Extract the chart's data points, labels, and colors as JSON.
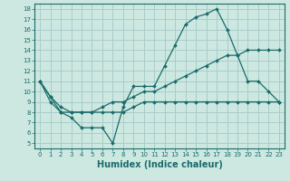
{
  "xlabel": "Humidex (Indice chaleur)",
  "bg_color": "#cce8e0",
  "grid_color": "#aacccc",
  "line_color": "#1a6b6b",
  "spine_color": "#1a6b6b",
  "xlim": [
    -0.5,
    23.5
  ],
  "ylim": [
    4.5,
    18.5
  ],
  "xticks": [
    0,
    1,
    2,
    3,
    4,
    5,
    6,
    7,
    8,
    9,
    10,
    11,
    12,
    13,
    14,
    15,
    16,
    17,
    18,
    19,
    20,
    21,
    22,
    23
  ],
  "yticks": [
    5,
    6,
    7,
    8,
    9,
    10,
    11,
    12,
    13,
    14,
    15,
    16,
    17,
    18
  ],
  "line1_x": [
    0,
    1,
    2,
    3,
    4,
    5,
    6,
    7,
    8,
    9,
    10,
    11,
    12,
    13,
    14,
    15,
    16,
    17,
    18,
    19,
    20,
    21,
    22,
    23
  ],
  "line1_y": [
    11,
    9,
    8,
    7.5,
    6.5,
    6.5,
    6.5,
    5,
    8.5,
    10.5,
    10.5,
    10.5,
    12.5,
    14.5,
    16.5,
    17.2,
    17.5,
    18,
    16,
    13.5,
    11,
    11,
    10,
    9
  ],
  "line2_x": [
    0,
    1,
    2,
    3,
    4,
    5,
    6,
    7,
    8,
    9,
    10,
    11,
    12,
    13,
    14,
    15,
    16,
    17,
    18,
    19,
    20,
    21,
    22,
    23
  ],
  "line2_y": [
    11,
    9.5,
    8,
    8,
    8,
    8,
    8.5,
    9,
    9,
    9.5,
    10,
    10,
    10.5,
    11,
    11.5,
    12,
    12.5,
    13,
    13.5,
    13.5,
    14,
    14,
    14,
    14
  ],
  "line3_x": [
    0,
    1,
    2,
    3,
    4,
    5,
    6,
    7,
    8,
    9,
    10,
    11,
    12,
    13,
    14,
    15,
    16,
    17,
    18,
    19,
    20,
    21,
    22,
    23
  ],
  "line3_y": [
    11,
    9.5,
    8.5,
    8,
    8,
    8,
    8,
    8,
    8,
    8.5,
    9,
    9,
    9,
    9,
    9,
    9,
    9,
    9,
    9,
    9,
    9,
    9,
    9,
    9
  ],
  "xlabel_fontsize": 7,
  "tick_fontsize": 5,
  "lw": 0.9,
  "ms": 2.0
}
